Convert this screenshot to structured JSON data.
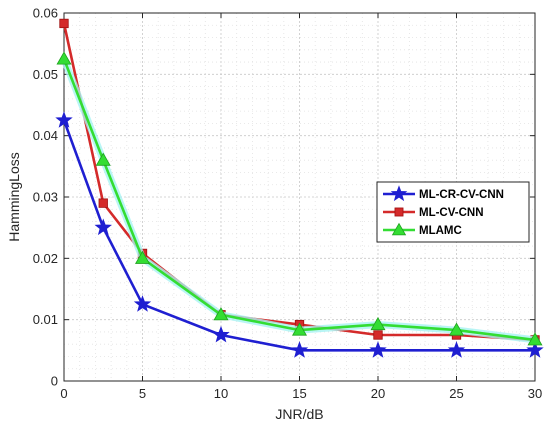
{
  "chart_data": {
    "type": "line",
    "title": "",
    "xlabel": "JNR/dB",
    "ylabel": "HammingLoss",
    "xlim": [
      0,
      30
    ],
    "ylim": [
      0,
      0.06
    ],
    "xticks": [
      0,
      5,
      10,
      15,
      20,
      25,
      30
    ],
    "yticks": [
      0,
      0.01,
      0.02,
      0.03,
      0.04,
      0.05,
      0.06
    ],
    "xtick_labels": [
      "0",
      "5",
      "10",
      "15",
      "20",
      "25",
      "30"
    ],
    "ytick_labels": [
      "0",
      "0.01",
      "0.02",
      "0.03",
      "0.04",
      "0.05",
      "0.06"
    ],
    "grid": true,
    "legend_position": "right",
    "series": [
      {
        "name": "ML-CR-CV-CNN",
        "color": "#1f1fd1",
        "marker": "star",
        "x": [
          0,
          2.5,
          5,
          10,
          15,
          20,
          25,
          30
        ],
        "y": [
          0.0425,
          0.025,
          0.0125,
          0.0075,
          0.005,
          0.005,
          0.005,
          0.005
        ]
      },
      {
        "name": "ML-CV-CNN",
        "color": "#d42a2a",
        "marker": "square",
        "x": [
          0,
          2.5,
          5,
          10,
          15,
          20,
          25,
          30
        ],
        "y": [
          0.0583,
          0.029,
          0.0208,
          0.0108,
          0.0092,
          0.0075,
          0.0075,
          0.0067
        ]
      },
      {
        "name": "MLAMC",
        "color": "#33dd33",
        "marker": "triangle",
        "x": [
          0,
          2.5,
          5,
          10,
          15,
          20,
          25,
          30
        ],
        "y": [
          0.0525,
          0.036,
          0.02,
          0.0108,
          0.0083,
          0.0092,
          0.0083,
          0.0067
        ]
      }
    ]
  }
}
